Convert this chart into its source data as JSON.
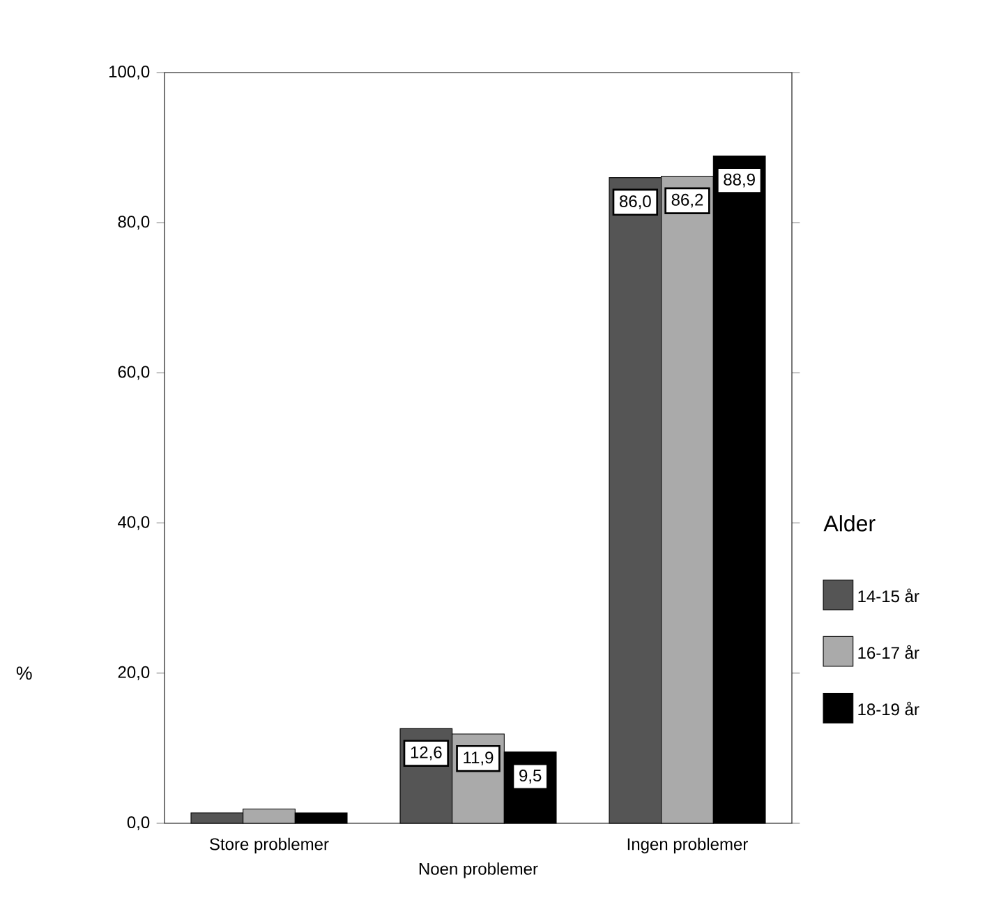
{
  "chart_data": {
    "type": "bar",
    "ylabel": "%",
    "legend_title": "Alder",
    "categories": [
      "Store problemer",
      "Noen problemer",
      "Ingen  problemer"
    ],
    "series": [
      {
        "name": "14-15 år",
        "color": "#555555",
        "values": [
          1.4,
          12.6,
          86.0
        ],
        "value_labels": [
          null,
          "12,6",
          "86,0"
        ]
      },
      {
        "name": "16-17 år",
        "color": "#aaaaaa",
        "values": [
          1.9,
          11.9,
          86.2
        ],
        "value_labels": [
          null,
          "11,9",
          "86,2"
        ]
      },
      {
        "name": "18-19 år",
        "color": "#000000",
        "values": [
          1.4,
          9.5,
          88.9
        ],
        "value_labels": [
          null,
          "9,5",
          "88,9"
        ]
      }
    ],
    "ylim": [
      0,
      100
    ],
    "yticks": [
      {
        "value": 0,
        "label": "0,0"
      },
      {
        "value": 20,
        "label": "20,0"
      },
      {
        "value": 40,
        "label": "40,0"
      },
      {
        "value": 60,
        "label": "60,0"
      },
      {
        "value": 80,
        "label": "80,0"
      },
      {
        "value": 100,
        "label": "100,0"
      }
    ],
    "grid": false,
    "legend": "right"
  }
}
